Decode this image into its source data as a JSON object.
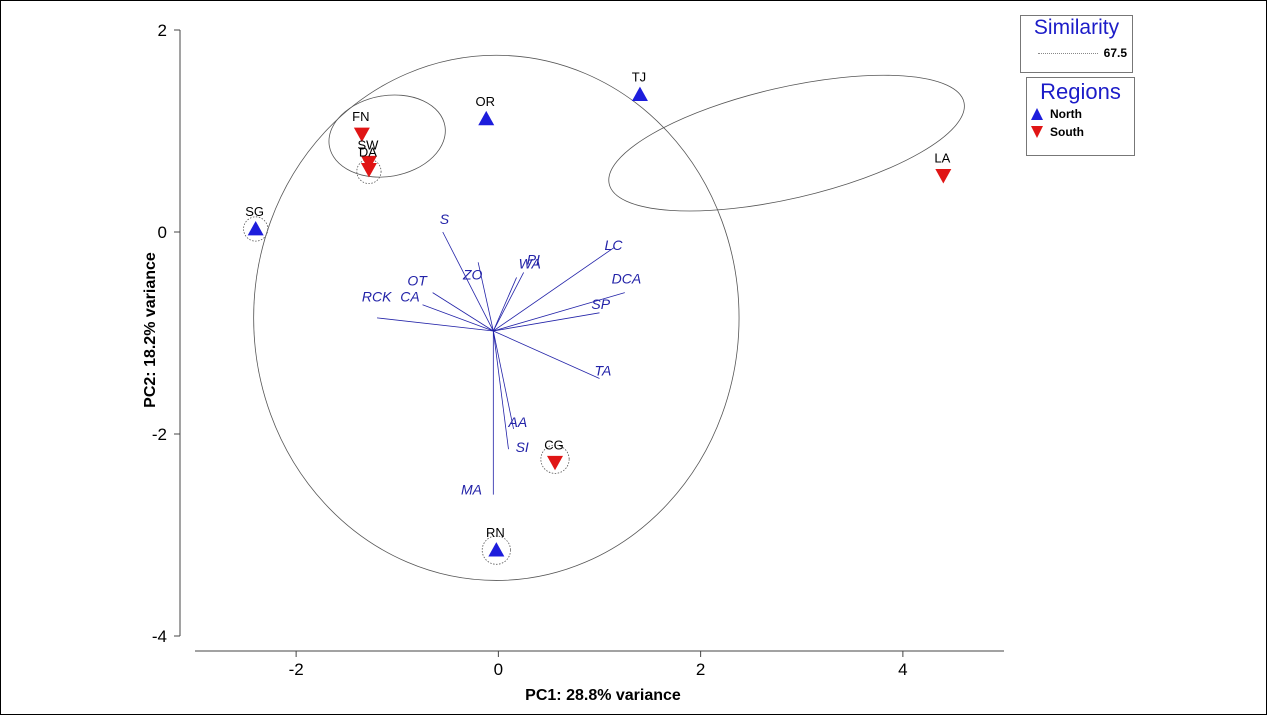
{
  "chart_data": {
    "type": "scatter",
    "title": "",
    "xlabel": "PC1: 28.8% variance",
    "ylabel": "PC2: 18.2% variance",
    "xlim": [
      -3.0,
      5.0
    ],
    "ylim": [
      -4.0,
      2.0
    ],
    "xticks": [
      -2,
      0,
      2,
      4
    ],
    "yticks": [
      -4,
      -2,
      0,
      2
    ],
    "xtick_labels": [
      "-2",
      "0",
      "2",
      "4"
    ],
    "ytick_labels": [
      "-4",
      "-2",
      "0",
      "2"
    ],
    "colors": {
      "north": "#1d1ddc",
      "south": "#e01515",
      "vector": "#2323a8"
    },
    "series": [
      {
        "name": "North",
        "marker": "triangle-up",
        "points": [
          {
            "label": "SG",
            "x": -2.4,
            "y": 0.03
          },
          {
            "label": "OR",
            "x": -0.12,
            "y": 1.12
          },
          {
            "label": "TJ",
            "x": 1.4,
            "y": 1.36
          },
          {
            "label": "RN",
            "x": -0.02,
            "y": -3.15
          }
        ]
      },
      {
        "name": "South",
        "marker": "triangle-down",
        "points": [
          {
            "label": "FN",
            "x": -1.35,
            "y": 0.97
          },
          {
            "label": "SW",
            "x": -1.28,
            "y": 0.69
          },
          {
            "label": "DA",
            "x": -1.28,
            "y": 0.62
          },
          {
            "label": "LA",
            "x": 4.4,
            "y": 0.56
          },
          {
            "label": "CG",
            "x": 0.56,
            "y": -2.28
          }
        ]
      }
    ],
    "vectors": [
      {
        "label": "S",
        "x": -0.55,
        "y": 0.0
      },
      {
        "label": "ZO",
        "x": -0.2,
        "y": -0.3
      },
      {
        "label": "WA",
        "x": 0.18,
        "y": -0.45
      },
      {
        "label": "PI",
        "x": 0.25,
        "y": -0.4
      },
      {
        "label": "LC",
        "x": 1.15,
        "y": -0.15
      },
      {
        "label": "DCA",
        "x": 1.25,
        "y": -0.6
      },
      {
        "label": "SP",
        "x": 1.0,
        "y": -0.8
      },
      {
        "label": "TA",
        "x": 1.0,
        "y": -1.45
      },
      {
        "label": "OT",
        "x": -0.65,
        "y": -0.6
      },
      {
        "label": "CA",
        "x": -0.75,
        "y": -0.72
      },
      {
        "label": "RCK",
        "x": -1.2,
        "y": -0.85
      },
      {
        "label": "AA",
        "x": 0.15,
        "y": -1.95
      },
      {
        "label": "SI",
        "x": 0.1,
        "y": -2.15
      },
      {
        "label": "MA",
        "x": -0.05,
        "y": -2.6
      }
    ],
    "vector_origin": {
      "x": -0.05,
      "y": -0.98
    },
    "vector_label_pos": {
      "S": {
        "x": -0.58,
        "y": 0.08
      },
      "ZO": {
        "x": -0.35,
        "y": -0.47
      },
      "WA": {
        "x": 0.2,
        "y": -0.36
      },
      "PI": {
        "x": 0.28,
        "y": -0.32
      },
      "LC": {
        "x": 1.05,
        "y": -0.18
      },
      "DCA": {
        "x": 1.12,
        "y": -0.51
      },
      "SP": {
        "x": 0.92,
        "y": -0.76
      },
      "TA": {
        "x": 0.95,
        "y": -1.42
      },
      "OT": {
        "x": -0.9,
        "y": -0.53
      },
      "CA": {
        "x": -0.97,
        "y": -0.69
      },
      "RCK": {
        "x": -1.35,
        "y": -0.69
      },
      "AA": {
        "x": 0.1,
        "y": -1.93
      },
      "SI": {
        "x": 0.17,
        "y": -2.18
      },
      "MA": {
        "x": -0.37,
        "y": -2.6
      }
    },
    "similarity_clusters": [
      {
        "type": "ellipse",
        "cx": -0.02,
        "cy": -0.85,
        "rx": 2.4,
        "ry": 2.6,
        "rotation_deg": 0
      },
      {
        "type": "ellipse",
        "cx": -1.1,
        "cy": 0.95,
        "rx": 0.58,
        "ry": 0.4,
        "rotation_deg": -10
      },
      {
        "type": "ellipse",
        "cx": 2.85,
        "cy": 0.88,
        "rx": 1.8,
        "ry": 0.55,
        "rotation_deg": -13
      },
      {
        "type": "circle",
        "cx": -2.4,
        "cy": 0.03,
        "r": 0.12
      },
      {
        "type": "circle",
        "cx": -1.28,
        "cy": 0.6,
        "r": 0.12
      },
      {
        "type": "circle",
        "cx": -0.02,
        "cy": -3.15,
        "r": 0.14
      },
      {
        "type": "circle",
        "cx": 0.56,
        "cy": -2.25,
        "r": 0.14
      }
    ],
    "legend": {
      "similarity": {
        "title": "Similarity",
        "value": "67.5"
      },
      "regions": {
        "title": "Regions",
        "entries": [
          {
            "name": "North",
            "marker": "triangle-up"
          },
          {
            "name": "South",
            "marker": "triangle-down"
          }
        ]
      },
      "placement": "top-right"
    }
  }
}
